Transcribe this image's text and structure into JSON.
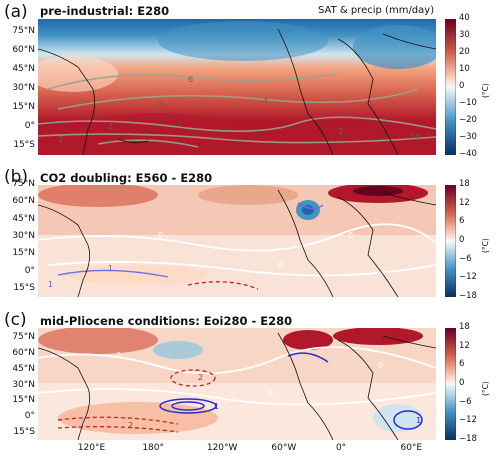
{
  "panels": [
    {
      "letter": "(a)",
      "title": "pre-industrial: E280",
      "subtitle": "SAT & precip (mm/day)",
      "colorbar": {
        "ticks": [
          "40",
          "30",
          "20",
          "10",
          "0",
          "−10",
          "−20",
          "−30",
          "−40"
        ],
        "values": [
          40,
          30,
          20,
          10,
          0,
          -10,
          -20,
          -30,
          -40
        ],
        "unit": "(°C)"
      },
      "contour_labels": [
        "6",
        "2",
        "4",
        "2",
        "2",
        "10",
        "2"
      ]
    },
    {
      "letter": "(b)",
      "title": "CO2 doubling: E560 - E280",
      "subtitle": "",
      "colorbar": {
        "ticks": [
          "18",
          "12",
          "6",
          "0",
          "−6",
          "−12",
          "−18"
        ],
        "values": [
          18,
          12,
          6,
          0,
          -6,
          -12,
          -18
        ],
        "unit": "(°C)"
      },
      "contour_labels": [
        "0",
        "1",
        "0",
        "0",
        "1"
      ]
    },
    {
      "letter": "(c)",
      "title": "mid-Pliocene conditions: Eoi280 - E280",
      "subtitle": "",
      "colorbar": {
        "ticks": [
          "18",
          "12",
          "6",
          "0",
          "−6",
          "−12",
          "−18"
        ],
        "values": [
          18,
          12,
          6,
          0,
          -6,
          -12,
          -18
        ],
        "unit": "(°C)"
      },
      "contour_labels": [
        "0",
        "1",
        "2",
        "0",
        "1",
        "2",
        "0"
      ]
    }
  ],
  "lat_ticks": [
    "75°N",
    "60°N",
    "45°N",
    "30°N",
    "15°N",
    "0°",
    "15°S"
  ],
  "lat_values": [
    75,
    60,
    45,
    30,
    15,
    0,
    -15
  ],
  "lon_ticks": [
    "120°E",
    "180°",
    "120°W",
    "60°W",
    "0°",
    "60°E"
  ],
  "lon_values": [
    120,
    180,
    240,
    300,
    360,
    420
  ],
  "colors": {
    "warm_dark": "#67001f",
    "warm": "#d6604d",
    "warm_light": "#fddbc7",
    "neutral": "#f7f7f7",
    "cool_light": "#d1e5f0",
    "cool": "#4393c3",
    "cool_dark": "#053061",
    "precip_contour": "#9aa58b",
    "coastline": "#111111",
    "anomaly_pos": "#ffffff",
    "anomaly_neg_blue": "#3b3bd1",
    "anomaly_neg_red": "#cc2020"
  }
}
